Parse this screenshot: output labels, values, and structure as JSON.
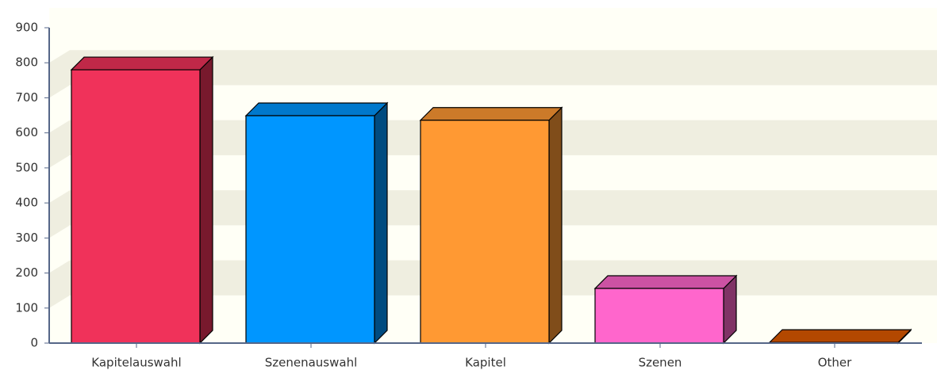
{
  "chart_data": {
    "type": "bar",
    "categories": [
      "Kapitelauswahl",
      "Szenenauswahl",
      "Kapitel",
      "Szenen",
      "Other"
    ],
    "values": [
      780,
      649,
      636,
      156,
      2
    ],
    "colors": [
      "#f0325a",
      "#0096ff",
      "#ff9933",
      "#ff66cc",
      "#e05a00"
    ],
    "ylim": [
      0,
      900
    ],
    "yticks": [
      0,
      100,
      200,
      300,
      400,
      500,
      600,
      700,
      800,
      900
    ],
    "grid": true
  }
}
